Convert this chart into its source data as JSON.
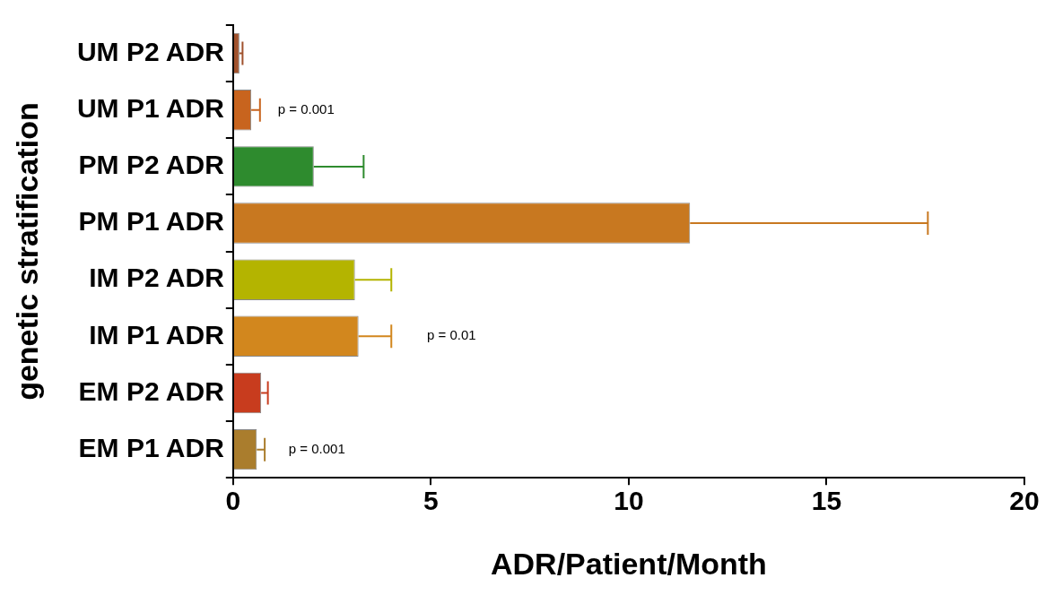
{
  "chart_data": {
    "type": "bar",
    "orientation": "horizontal",
    "xlabel": "ADR/Patient/Month",
    "ylabel": "genetic stratification",
    "categories": [
      "UM P2 ADR",
      "UM P1 ADR",
      "PM P2 ADR",
      "PM P1 ADR",
      "IM P2 ADR",
      "IM P1 ADR",
      "EM P2 ADR",
      "EM P1 ADR"
    ],
    "values": [
      0.16,
      0.46,
      2.04,
      11.55,
      3.08,
      3.17,
      0.71,
      0.6
    ],
    "errors": [
      [
        0.16,
        0.24
      ],
      [
        0.46,
        0.68
      ],
      [
        2.04,
        3.3
      ],
      [
        11.55,
        17.56
      ],
      [
        3.08,
        4.0
      ],
      [
        3.17,
        4.0
      ],
      [
        0.71,
        0.88
      ],
      [
        0.6,
        0.8
      ]
    ],
    "colors": [
      "#a0522d",
      "#c8641e",
      "#2e8b2e",
      "#c87820",
      "#b4b400",
      "#d2871e",
      "#c83c1e",
      "#aa7d2d"
    ],
    "xlim": [
      0,
      20
    ],
    "xticks": [
      0,
      5,
      10,
      15,
      20
    ],
    "grid": false,
    "legend": false,
    "annotations": [
      "p = 0.001",
      "p = 0.01",
      "p = 0.001"
    ]
  }
}
